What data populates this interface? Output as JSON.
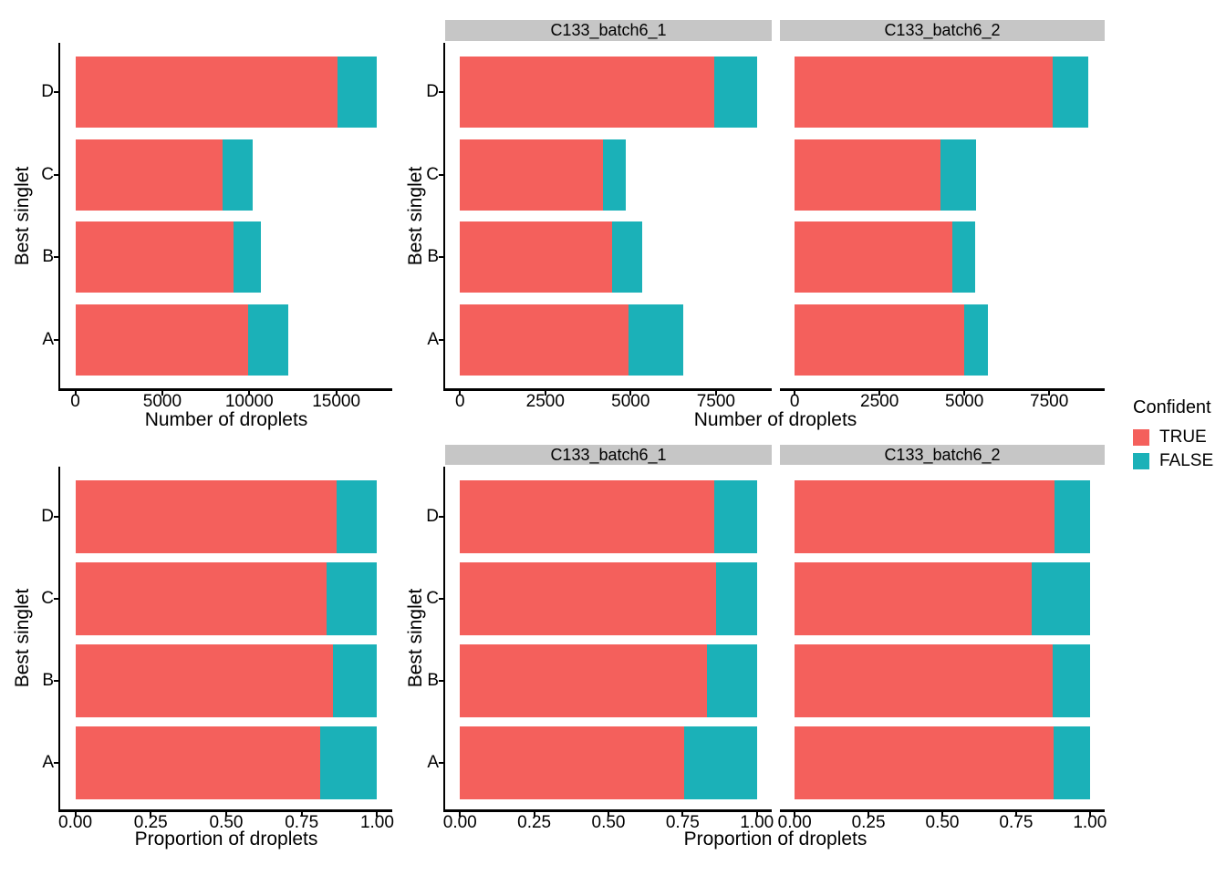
{
  "colors": {
    "confident_true": "#F4605C",
    "confident_false": "#1BB1B8",
    "strip_bg": "#C6C6C6",
    "axis": "#000000"
  },
  "legend": {
    "title": "Confident",
    "position": "right",
    "items": [
      {
        "label": "TRUE",
        "color": "#F4605C"
      },
      {
        "label": "FALSE",
        "color": "#1BB1B8"
      }
    ]
  },
  "chart_data": [
    {
      "id": "droplet-counts-overall",
      "type": "bar",
      "orientation": "horizontal",
      "stacked": true,
      "xlabel": "Number of droplets",
      "ylabel": "Best singlet",
      "categories": [
        "D",
        "C",
        "B",
        "A"
      ],
      "series": [
        {
          "name": "TRUE",
          "values": [
            15050,
            8480,
            9100,
            9950
          ]
        },
        {
          "name": "FALSE",
          "values": [
            2300,
            1720,
            1570,
            2300
          ]
        }
      ],
      "x_ticks": [
        0,
        5000,
        10000,
        15000
      ],
      "x_tick_labels": [
        "0",
        "5000",
        "10000",
        "15000"
      ],
      "xlim": [
        0,
        17350
      ],
      "grid": false
    },
    {
      "id": "droplet-counts-by-sample",
      "type": "bar",
      "orientation": "horizontal",
      "stacked": true,
      "xlabel": "Number of droplets",
      "ylabel": "Best singlet",
      "categories": [
        "D",
        "C",
        "B",
        "A"
      ],
      "facets": [
        {
          "label": "C133_batch6_1",
          "series": [
            {
              "name": "TRUE",
              "values": [
                7450,
                4180,
                4450,
                4950
              ]
            },
            {
              "name": "FALSE",
              "values": [
                1250,
                670,
                900,
                1600
              ]
            }
          ]
        },
        {
          "label": "C133_batch6_2",
          "series": [
            {
              "name": "TRUE",
              "values": [
                7600,
                4300,
                4650,
                5000
              ]
            },
            {
              "name": "FALSE",
              "values": [
                1050,
                1050,
                670,
                700
              ]
            }
          ]
        }
      ],
      "x_ticks": [
        0,
        2500,
        5000,
        7500
      ],
      "x_tick_labels": [
        "0",
        "2500",
        "5000",
        "7500"
      ],
      "xlim": [
        0,
        8700
      ],
      "grid": false
    },
    {
      "id": "droplet-proportions-overall",
      "type": "bar",
      "orientation": "horizontal",
      "stacked": true,
      "xlabel": "Proportion of droplets",
      "ylabel": "Best singlet",
      "categories": [
        "D",
        "C",
        "B",
        "A"
      ],
      "series": [
        {
          "name": "TRUE",
          "values": [
            0.867,
            0.831,
            0.853,
            0.812
          ]
        },
        {
          "name": "FALSE",
          "values": [
            0.133,
            0.169,
            0.147,
            0.188
          ]
        }
      ],
      "x_ticks": [
        0,
        0.25,
        0.5,
        0.75,
        1
      ],
      "x_tick_labels": [
        "0.00",
        "0.25",
        "0.50",
        "0.75",
        "1.00"
      ],
      "xlim": [
        0,
        1
      ],
      "grid": false
    },
    {
      "id": "droplet-proportions-by-sample",
      "type": "bar",
      "orientation": "horizontal",
      "stacked": true,
      "xlabel": "Proportion of droplets",
      "ylabel": "Best singlet",
      "categories": [
        "D",
        "C",
        "B",
        "A"
      ],
      "facets": [
        {
          "label": "C133_batch6_1",
          "series": [
            {
              "name": "TRUE",
              "values": [
                0.856,
                0.862,
                0.832,
                0.756
              ]
            },
            {
              "name": "FALSE",
              "values": [
                0.144,
                0.138,
                0.168,
                0.244
              ]
            }
          ]
        },
        {
          "label": "C133_batch6_2",
          "series": [
            {
              "name": "TRUE",
              "values": [
                0.879,
                0.804,
                0.874,
                0.877
              ]
            },
            {
              "name": "FALSE",
              "values": [
                0.121,
                0.196,
                0.126,
                0.123
              ]
            }
          ]
        }
      ],
      "x_ticks": [
        0,
        0.25,
        0.5,
        0.75,
        1
      ],
      "x_tick_labels": [
        "0.00",
        "0.25",
        "0.50",
        "0.75",
        "1.00"
      ],
      "xlim": [
        0,
        1
      ],
      "grid": false
    }
  ]
}
